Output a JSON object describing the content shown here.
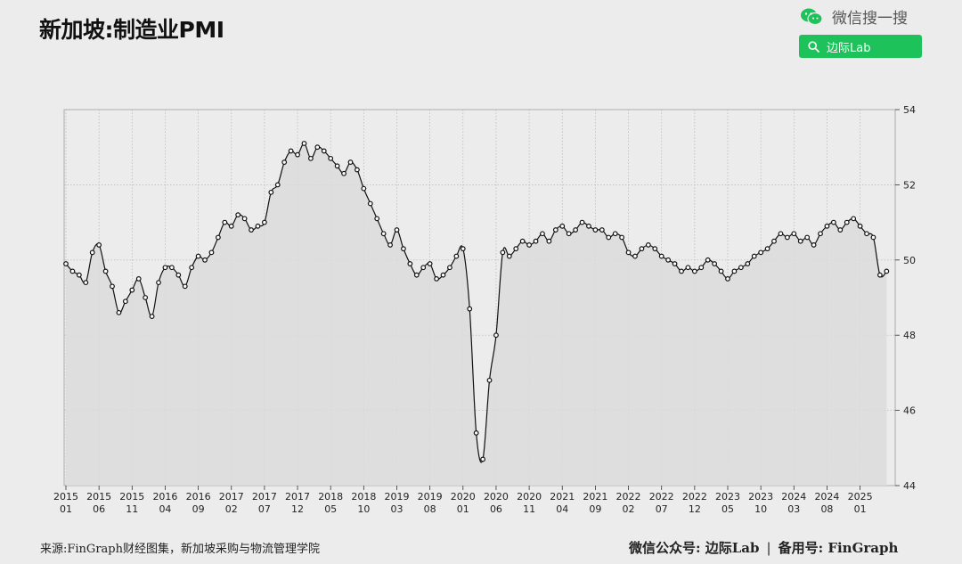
{
  "header": {
    "title": "新加坡:制造业PMI"
  },
  "brand": {
    "wechat_search_label": "微信搜一搜",
    "search_query": "边际Lab",
    "accent_color": "#1dc25b"
  },
  "footer": {
    "source": "来源:FinGraph财经图集，新加坡采购与物流管理学院",
    "account_label": "微信公众号: 边际Lab",
    "separator": "|",
    "record_label": "备用号: FinGraph"
  },
  "chart_data": {
    "type": "area",
    "title": "新加坡:制造业PMI",
    "y_axis_position": "right",
    "ylim": [
      44,
      54
    ],
    "yticks": [
      44,
      46,
      48,
      50,
      52,
      54
    ],
    "grid": true,
    "x_start": "2015-01",
    "x_end": "2025-06",
    "x_ticks": [
      {
        "year": "2015",
        "month": "01"
      },
      {
        "year": "2015",
        "month": "06"
      },
      {
        "year": "2015",
        "month": "11"
      },
      {
        "year": "2016",
        "month": "04"
      },
      {
        "year": "2016",
        "month": "09"
      },
      {
        "year": "2017",
        "month": "02"
      },
      {
        "year": "2017",
        "month": "07"
      },
      {
        "year": "2017",
        "month": "12"
      },
      {
        "year": "2018",
        "month": "05"
      },
      {
        "year": "2018",
        "month": "10"
      },
      {
        "year": "2019",
        "month": "03"
      },
      {
        "year": "2019",
        "month": "08"
      },
      {
        "year": "2020",
        "month": "01"
      },
      {
        "year": "2020",
        "month": "06"
      },
      {
        "year": "2020",
        "month": "11"
      },
      {
        "year": "2021",
        "month": "04"
      },
      {
        "year": "2021",
        "month": "09"
      },
      {
        "year": "2022",
        "month": "02"
      },
      {
        "year": "2022",
        "month": "07"
      },
      {
        "year": "2022",
        "month": "12"
      },
      {
        "year": "2023",
        "month": "05"
      },
      {
        "year": "2023",
        "month": "10"
      },
      {
        "year": "2024",
        "month": "03"
      },
      {
        "year": "2024",
        "month": "08"
      },
      {
        "year": "2025",
        "month": "01"
      }
    ],
    "series": [
      {
        "values": [
          49.9,
          49.7,
          49.6,
          49.4,
          50.2,
          50.4,
          49.7,
          49.3,
          48.6,
          48.9,
          49.2,
          49.5,
          49.0,
          48.5,
          49.4,
          49.8,
          49.8,
          49.6,
          49.3,
          49.8,
          50.1,
          50.0,
          50.2,
          50.6,
          51.0,
          50.9,
          51.2,
          51.1,
          50.8,
          50.9,
          51.0,
          51.8,
          52.0,
          52.6,
          52.9,
          52.8,
          53.1,
          52.7,
          53.0,
          52.9,
          52.7,
          52.5,
          52.3,
          52.6,
          52.4,
          51.9,
          51.5,
          51.1,
          50.7,
          50.4,
          50.8,
          50.3,
          49.9,
          49.6,
          49.8,
          49.9,
          49.5,
          49.6,
          49.8,
          50.1,
          50.3,
          48.7,
          45.4,
          44.7,
          46.8,
          48.0,
          50.2,
          50.1,
          50.3,
          50.5,
          50.4,
          50.5,
          50.7,
          50.5,
          50.8,
          50.9,
          50.7,
          50.8,
          51.0,
          50.9,
          50.8,
          50.8,
          50.6,
          50.7,
          50.6,
          50.2,
          50.1,
          50.3,
          50.4,
          50.3,
          50.1,
          50.0,
          49.9,
          49.7,
          49.8,
          49.7,
          49.8,
          50.0,
          49.9,
          49.7,
          49.5,
          49.7,
          49.8,
          49.9,
          50.1,
          50.2,
          50.3,
          50.5,
          50.7,
          50.6,
          50.7,
          50.5,
          50.6,
          50.4,
          50.7,
          50.9,
          51.0,
          50.8,
          51.0,
          51.1,
          50.9,
          50.7,
          50.6,
          49.6,
          49.7
        ]
      }
    ],
    "line_color": "#111111",
    "fill_color": "#dcdcdc"
  }
}
